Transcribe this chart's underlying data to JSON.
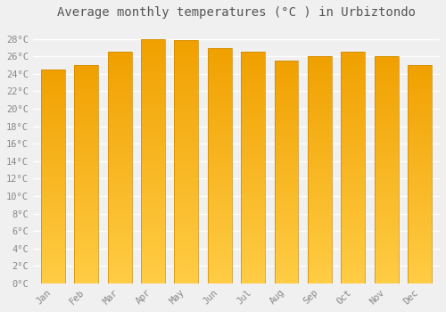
{
  "title": "Average monthly temperatures (°C ) in Urbiztondo",
  "months": [
    "Jan",
    "Feb",
    "Mar",
    "Apr",
    "May",
    "Jun",
    "Jul",
    "Aug",
    "Sep",
    "Oct",
    "Nov",
    "Dec"
  ],
  "values": [
    24.5,
    25.0,
    26.5,
    28.0,
    27.9,
    27.0,
    26.5,
    25.5,
    26.0,
    26.5,
    26.0,
    25.0
  ],
  "bar_color_light": "#FFCC44",
  "bar_color_dark": "#F5A800",
  "bar_edge_color": "#CC8800",
  "background_color": "#F0F0F0",
  "grid_color": "#FFFFFF",
  "yticks": [
    0,
    2,
    4,
    6,
    8,
    10,
    12,
    14,
    16,
    18,
    20,
    22,
    24,
    26,
    28
  ],
  "ylim": [
    0,
    29.5
  ],
  "title_fontsize": 10,
  "tick_fontsize": 7.5,
  "title_color": "#555555",
  "tick_color": "#888888",
  "font_family": "monospace"
}
